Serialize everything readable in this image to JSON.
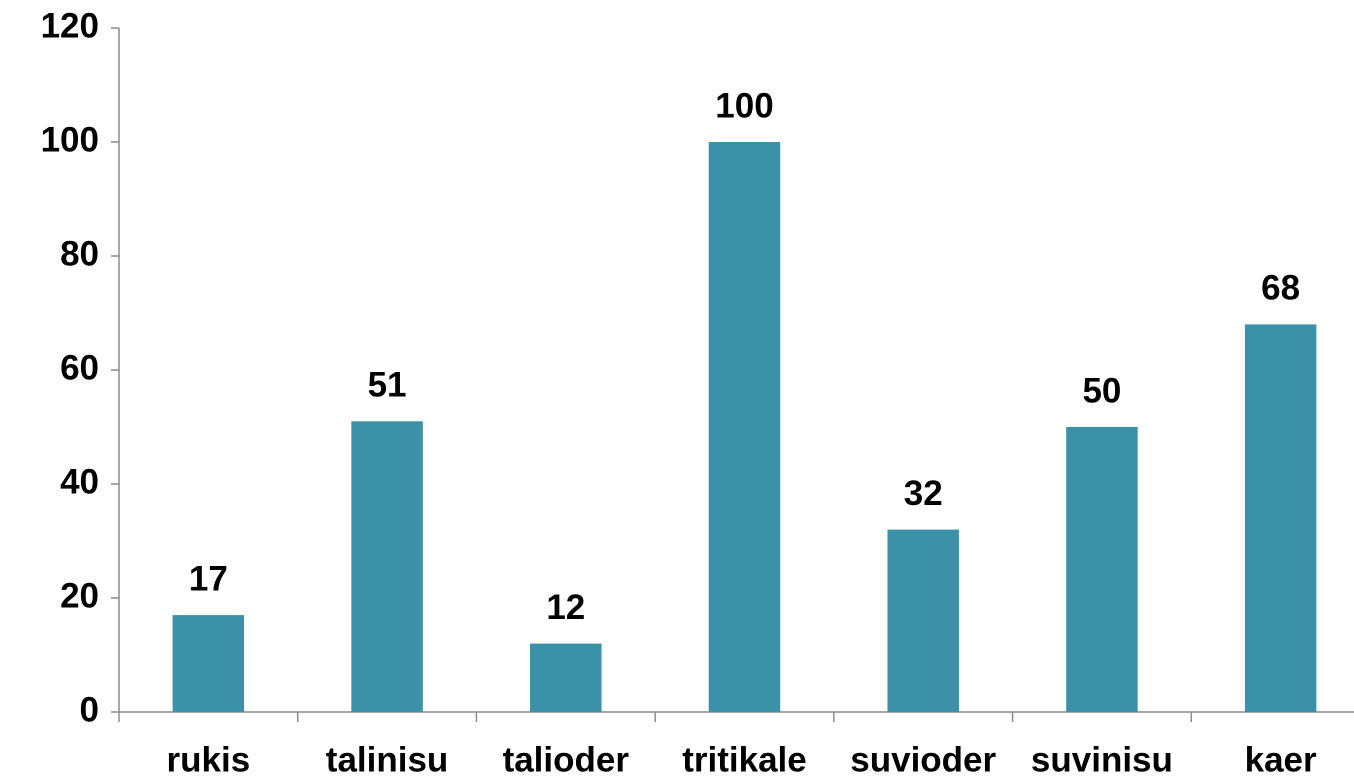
{
  "chart_data": {
    "type": "bar",
    "categories": [
      "rukis",
      "talinisu",
      "talioder",
      "tritikale",
      "suvioder",
      "suvinisu",
      "kaer"
    ],
    "values": [
      17,
      51,
      12,
      100,
      32,
      50,
      68
    ],
    "color": "#3a91a8",
    "ylim": [
      0,
      120
    ],
    "yticks": [
      0,
      20,
      40,
      60,
      80,
      100,
      120
    ],
    "grid": false,
    "data_labels": true
  }
}
